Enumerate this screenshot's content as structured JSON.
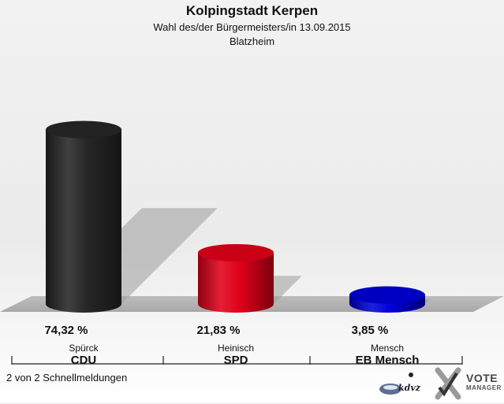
{
  "chart_data": {
    "type": "bar",
    "title": "Kolpingstadt Kerpen",
    "subtitle": "Wahl des/der Bürgermeisters/in 13.09.2015",
    "district": "Blatzheim",
    "categories": [
      "Spürck",
      "Heinisch",
      "Mensch"
    ],
    "parties": [
      "CDU",
      "SPD",
      "EB Mensch"
    ],
    "values": [
      74.32,
      21.83,
      3.85
    ],
    "value_labels": [
      "74,32 %",
      "21,83 %",
      "3,85 %"
    ],
    "colors": [
      "#262626",
      "#e0001a",
      "#0000d8"
    ],
    "ylim": [
      0,
      100
    ]
  },
  "footer": {
    "note": "2 von 2 Schnellmeldungen"
  },
  "logo": {
    "kdvz": "kdvz",
    "vote": "VOTE",
    "manager": "MANAGER"
  }
}
